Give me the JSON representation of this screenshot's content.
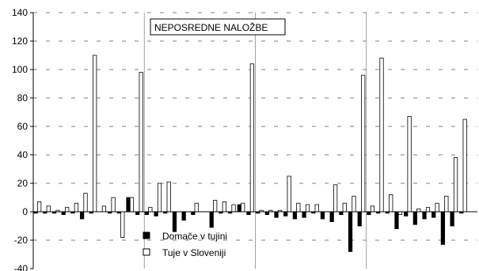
{
  "chart_data": {
    "type": "bar",
    "title": "NEPOSREDNE NALOŽBE",
    "xlabel": "",
    "ylabel": "",
    "ylim": [
      -40,
      140
    ],
    "yticks": [
      -40,
      -20,
      0,
      20,
      40,
      60,
      80,
      100,
      120,
      140
    ],
    "ytick_labels": [
      "-40",
      "-20",
      "0",
      "20",
      "40",
      "60",
      "80",
      "100",
      "120",
      "140"
    ],
    "grid": "horizontal dashed",
    "legend_position": "bottom-left",
    "group_count": 48,
    "year_dividers_after_group": [
      12,
      24,
      36
    ],
    "series": [
      {
        "name": "Domače v tujini",
        "color": "#000000",
        "values": [
          -1,
          -1,
          -1,
          -2,
          -1,
          -5,
          -1,
          0,
          -1,
          -1,
          10,
          -2,
          -2,
          -3,
          -1,
          -14,
          -6,
          -2,
          0,
          -11,
          -1,
          -1,
          5,
          -2,
          -1,
          -2,
          -4,
          -3,
          -5,
          -4,
          -1,
          -5,
          -7,
          -2,
          -28,
          -10,
          -2,
          -1,
          -1,
          -12,
          -3,
          -9,
          -5,
          -4,
          -23,
          -10,
          -1,
          0
        ],
        "fill_color": "#000000"
      },
      {
        "name": "Tuje v Sloveniji",
        "color": "#ffffff",
        "values": [
          7,
          4,
          1,
          3,
          6,
          13,
          110,
          4,
          10,
          -18,
          10,
          98,
          3,
          20,
          21,
          0,
          0,
          6,
          0,
          8,
          7,
          5,
          6,
          104,
          1,
          1,
          1,
          25,
          6,
          5,
          5,
          0,
          19,
          6,
          11,
          96,
          4,
          108,
          12,
          -2,
          67,
          2,
          3,
          6,
          11,
          38,
          65,
          0
        ],
        "fill_color": "#ffffff"
      }
    ]
  }
}
